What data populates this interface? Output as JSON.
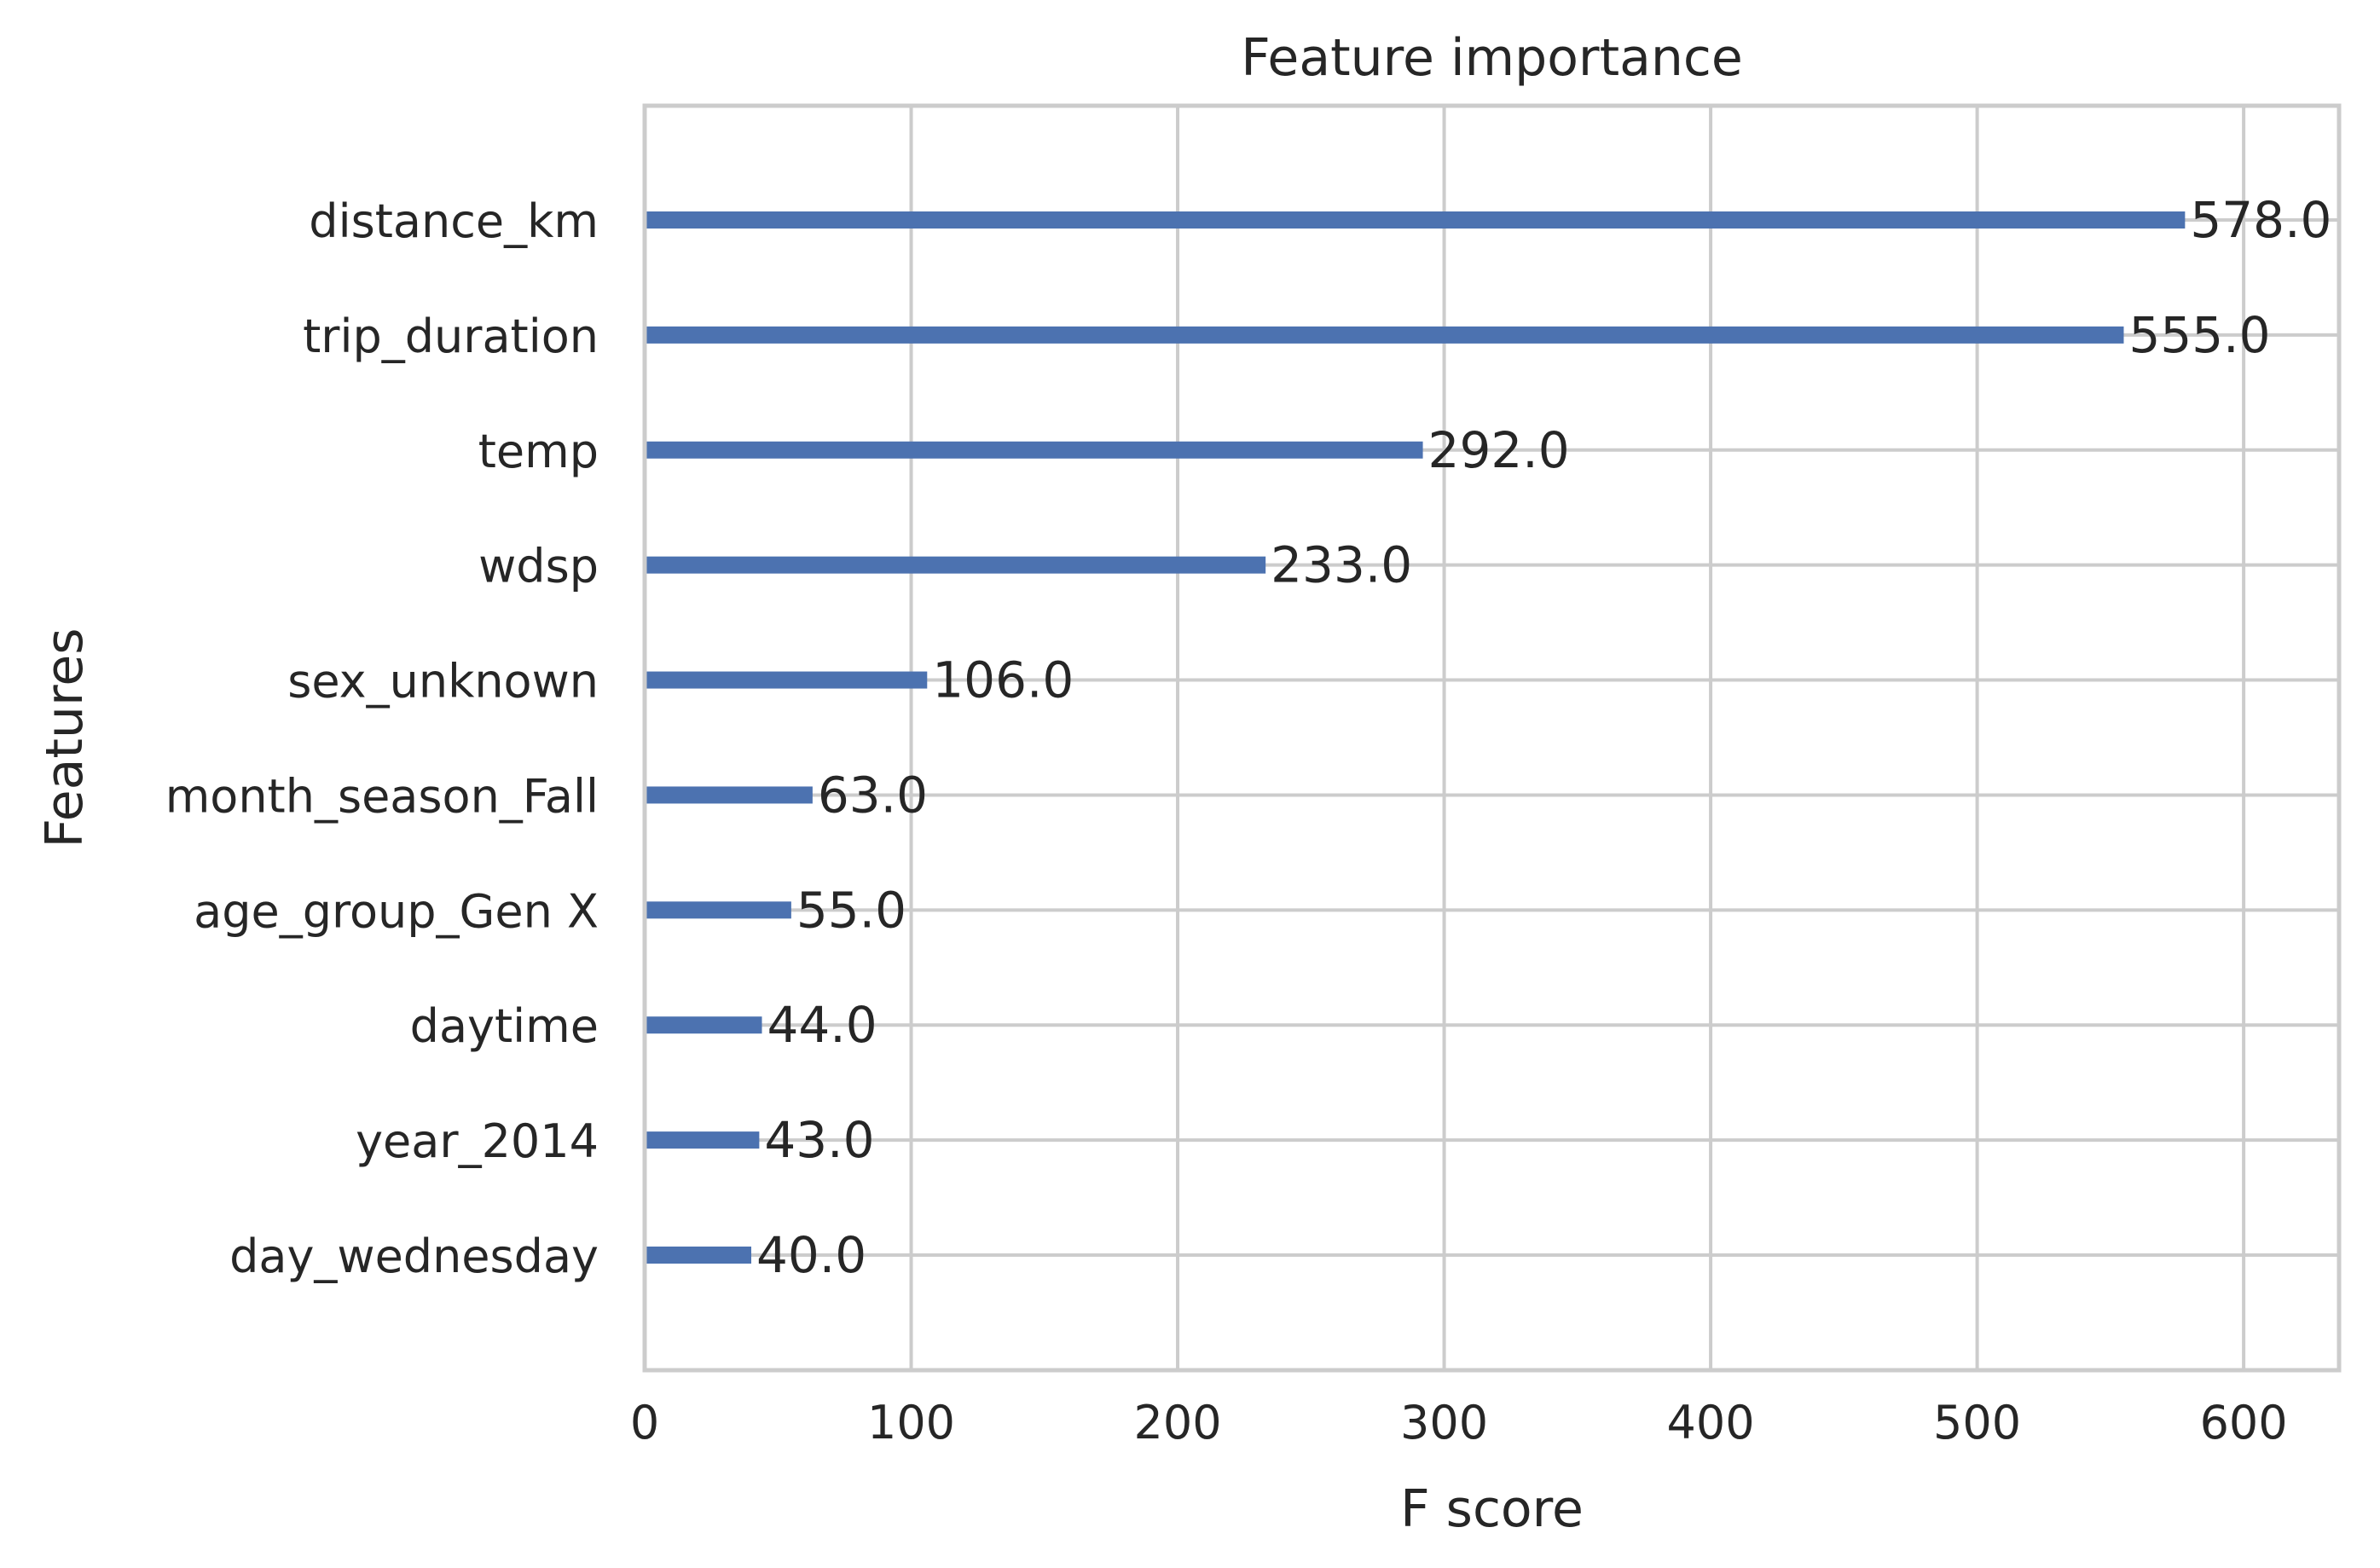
{
  "chart_data": {
    "type": "bar",
    "orientation": "horizontal",
    "title": "Feature importance",
    "xlabel": "F score",
    "ylabel": "Features",
    "categories": [
      "distance_km",
      "trip_duration",
      "temp",
      "wdsp",
      "sex_unknown",
      "month_season_Fall",
      "age_group_Gen X",
      "daytime",
      "year_2014",
      "day_wednesday"
    ],
    "values": [
      578.0,
      555.0,
      292.0,
      233.0,
      106.0,
      63.0,
      55.0,
      44.0,
      43.0,
      40.0
    ],
    "value_labels": [
      "578.0",
      "555.0",
      "292.0",
      "233.0",
      "106.0",
      "63.0",
      "55.0",
      "44.0",
      "43.0",
      "40.0"
    ],
    "xlim": [
      0,
      635.8
    ],
    "xticks": [
      0,
      100,
      200,
      300,
      400,
      500,
      600
    ],
    "xtick_labels": [
      "0",
      "100",
      "200",
      "300",
      "400",
      "500",
      "600"
    ],
    "grid": true,
    "legend": "none",
    "colors": {
      "bar": "#4c72b0",
      "grid": "#cccccc",
      "text": "#262626",
      "background": "#ffffff"
    }
  }
}
